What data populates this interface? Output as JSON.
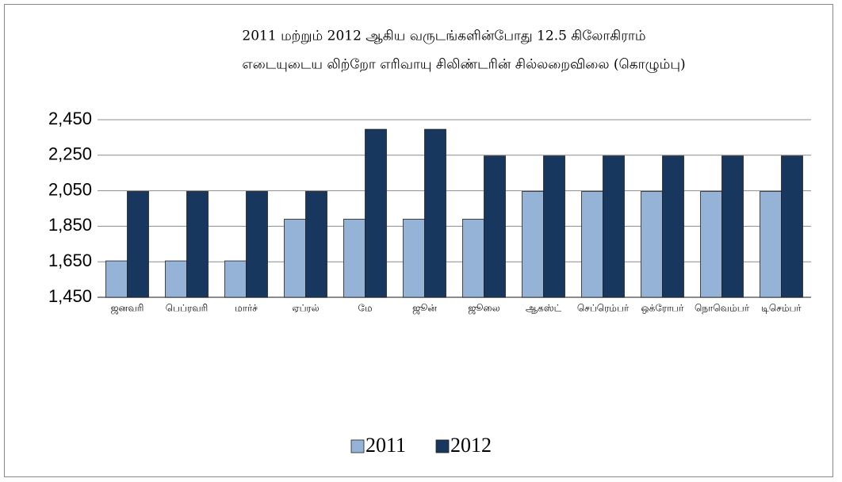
{
  "chart_data": {
    "type": "bar",
    "title": [
      "2011 மற்றும் 2012 ஆகிய வருடங்களின்போது 12.5 கிலோகிராம்",
      "எடையுடைய லிற்றோ எரிவாயு சிலிண்டரின் சில்லறைவிலை (கொழும்பு)"
    ],
    "categories": [
      "ஜனவரி",
      "பெப்ரவரி",
      "மார்ச்",
      "ஏப்ரல்",
      "மே",
      "ஜூன்",
      "ஜூலை",
      "ஆகஸ்ட்",
      "செப்ரெம்பர்",
      "ஒக்ரோபர்",
      "நொவெம்பர்",
      "டிசெம்பர்"
    ],
    "series": [
      {
        "name": "2011",
        "color": "#95b3d7",
        "values": [
          1655,
          1655,
          1655,
          1890,
          1890,
          1890,
          1890,
          2046,
          2046,
          2046,
          2046,
          2046
        ]
      },
      {
        "name": "2012",
        "color": "#17375e",
        "values": [
          2046,
          2046,
          2046,
          2046,
          2396,
          2396,
          2246,
          2246,
          2246,
          2246,
          2246,
          2246
        ]
      }
    ],
    "ylim": [
      1450,
      2450
    ],
    "yticks": [
      {
        "value": 1450,
        "label": "1,450"
      },
      {
        "value": 1650,
        "label": "1,650"
      },
      {
        "value": 1850,
        "label": "1,850"
      },
      {
        "value": 2050,
        "label": "2,050"
      },
      {
        "value": 2250,
        "label": "2,250"
      },
      {
        "value": 2450,
        "label": "2,450"
      }
    ],
    "grid": true,
    "legend": "bottom"
  }
}
